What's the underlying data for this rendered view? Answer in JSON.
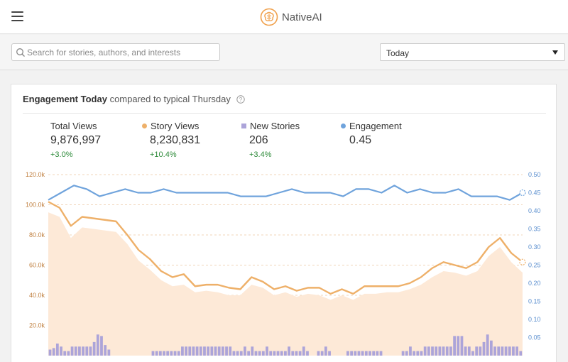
{
  "header": {
    "brand_name": "NativeAI",
    "menu_icon": "hamburger-icon",
    "logo_icon": "brain-logo-icon",
    "brand_color": "#f0a04b"
  },
  "filters": {
    "search": {
      "value": "",
      "placeholder": "Search for stories, authors, and interests",
      "icon": "search-icon"
    },
    "range": {
      "selected": "Today",
      "icon": "caret-down-icon"
    }
  },
  "card": {
    "title_bold": "Engagement Today",
    "title_rest": "compared to typical Thursday",
    "help_icon": "help-icon"
  },
  "stats": [
    {
      "label": "Total Views",
      "value": "9,876,997",
      "change": "+3.0%",
      "marker": "none"
    },
    {
      "label": "Story Views",
      "value": "8,230,831",
      "change": "+10.4%",
      "marker": "dot",
      "color": "#eeb069"
    },
    {
      "label": "New Stories",
      "value": "206",
      "change": "+3.4%",
      "marker": "square",
      "color": "#aca4d9"
    },
    {
      "label": "Engagement",
      "value": "0.45",
      "change": "",
      "marker": "dot",
      "color": "#6fa3dc"
    }
  ],
  "chart_data": {
    "type": "line",
    "left_axis": {
      "ticks": [
        "20.0k",
        "40.0k",
        "60.0k",
        "80.0k",
        "100.0k",
        "120.0k"
      ],
      "range": [
        0,
        120000
      ],
      "color": "#c08040"
    },
    "right_axis": {
      "ticks": [
        "0.05",
        "0.10",
        "0.15",
        "0.20",
        "0.25",
        "0.30",
        "0.35",
        "0.40",
        "0.45",
        "0.50"
      ],
      "range": [
        0,
        0.5
      ],
      "color": "#5b8fcf"
    },
    "grid": true,
    "series": [
      {
        "name": "Story Views",
        "type": "line",
        "axis": "left",
        "color": "#eeb069",
        "values": [
          102000,
          98000,
          86000,
          92000,
          91000,
          90000,
          89000,
          80000,
          70000,
          64000,
          56000,
          52000,
          54000,
          46000,
          47000,
          47000,
          45000,
          44000,
          52000,
          49000,
          44000,
          46000,
          43000,
          45000,
          45000,
          41000,
          44000,
          41000,
          46000,
          46000,
          46000,
          46000,
          48000,
          52000,
          58000,
          62000,
          60000,
          58000,
          62000,
          72000,
          78000,
          68000,
          62000
        ]
      },
      {
        "name": "Total Views",
        "type": "area",
        "axis": "left",
        "color": "#fde9d7",
        "values": [
          95000,
          92000,
          78000,
          85000,
          84000,
          83000,
          82000,
          74000,
          63000,
          57000,
          50000,
          46000,
          47000,
          42000,
          43000,
          42000,
          40000,
          40000,
          47000,
          45000,
          40000,
          42000,
          39000,
          41000,
          40000,
          37000,
          40000,
          37000,
          41000,
          41000,
          42000,
          42000,
          44000,
          47000,
          52000,
          56000,
          55000,
          53000,
          56000,
          66000,
          72000,
          62000,
          55000
        ]
      },
      {
        "name": "Engagement",
        "type": "line",
        "axis": "right",
        "color": "#6fa3dc",
        "values": [
          0.43,
          0.45,
          0.47,
          0.46,
          0.44,
          0.45,
          0.46,
          0.45,
          0.45,
          0.46,
          0.45,
          0.45,
          0.45,
          0.45,
          0.45,
          0.44,
          0.44,
          0.44,
          0.45,
          0.46,
          0.45,
          0.45,
          0.45,
          0.44,
          0.46,
          0.46,
          0.45,
          0.47,
          0.45,
          0.46,
          0.45,
          0.45,
          0.46,
          0.44,
          0.44,
          0.44,
          0.43,
          0.45
        ]
      },
      {
        "name": "New Stories",
        "type": "bar",
        "axis": "left",
        "color": "#aca4d9",
        "values": [
          4000,
          5000,
          8000,
          6000,
          3000,
          3000,
          6000,
          6000,
          6000,
          6000,
          6000,
          6000,
          9000,
          14000,
          13000,
          7000,
          4000,
          0,
          0,
          0,
          0,
          0,
          0,
          0,
          0,
          0,
          0,
          0,
          3000,
          3000,
          3000,
          3000,
          3000,
          3000,
          3000,
          3000,
          6000,
          6000,
          6000,
          6000,
          6000,
          6000,
          6000,
          6000,
          6000,
          6000,
          6000,
          6000,
          6000,
          6000,
          3000,
          3000,
          3000,
          6000,
          3000,
          6000,
          3000,
          3000,
          3000,
          6000,
          3000,
          3000,
          3000,
          3000,
          3000,
          6000,
          3000,
          3000,
          3000,
          6000,
          3000,
          0,
          0,
          3000,
          3000,
          6000,
          3000,
          0,
          0,
          0,
          0,
          3000,
          3000,
          3000,
          3000,
          3000,
          3000,
          3000,
          3000,
          3000,
          3000,
          0,
          0,
          0,
          0,
          0,
          3000,
          3000,
          6000,
          3000,
          3000,
          3000,
          6000,
          6000,
          6000,
          6000,
          6000,
          6000,
          6000,
          6000,
          13000,
          13000,
          13000,
          6000,
          6000,
          3000,
          6000,
          6000,
          9000,
          14000,
          10000,
          6000,
          6000,
          6000,
          6000,
          6000,
          6000,
          6000,
          3000
        ]
      }
    ]
  }
}
